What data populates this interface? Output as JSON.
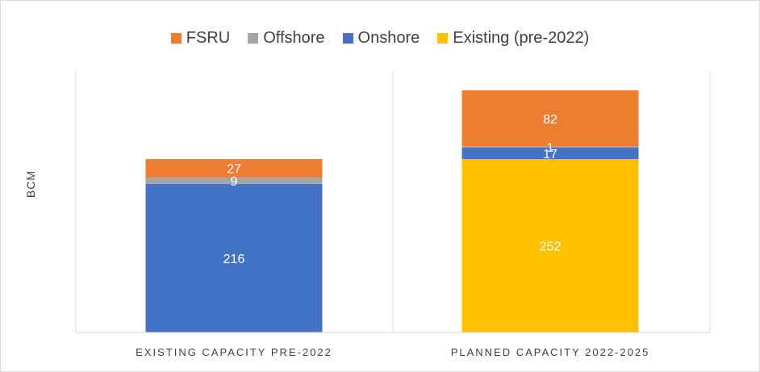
{
  "chart_data": {
    "type": "bar",
    "stacked": true,
    "ylabel": "BCM",
    "ylim": [
      0,
      380
    ],
    "grid": false,
    "legend_position": "top",
    "categories": [
      "EXISTING CAPACITY PRE-2022",
      "PLANNED CAPACITY 2022-2025"
    ],
    "series": [
      {
        "name": "Existing (pre-2022)",
        "color": "#ffc000",
        "values": [
          0,
          252
        ]
      },
      {
        "name": "Onshore",
        "color": "#4472c4",
        "values": [
          216,
          17
        ]
      },
      {
        "name": "Offshore",
        "color": "#a5a5a5",
        "values": [
          9,
          1
        ]
      },
      {
        "name": "FSRU",
        "color": "#ed7d31",
        "values": [
          27,
          82
        ]
      }
    ],
    "legend_order": [
      "FSRU",
      "Offshore",
      "Onshore",
      "Existing (pre-2022)"
    ]
  }
}
